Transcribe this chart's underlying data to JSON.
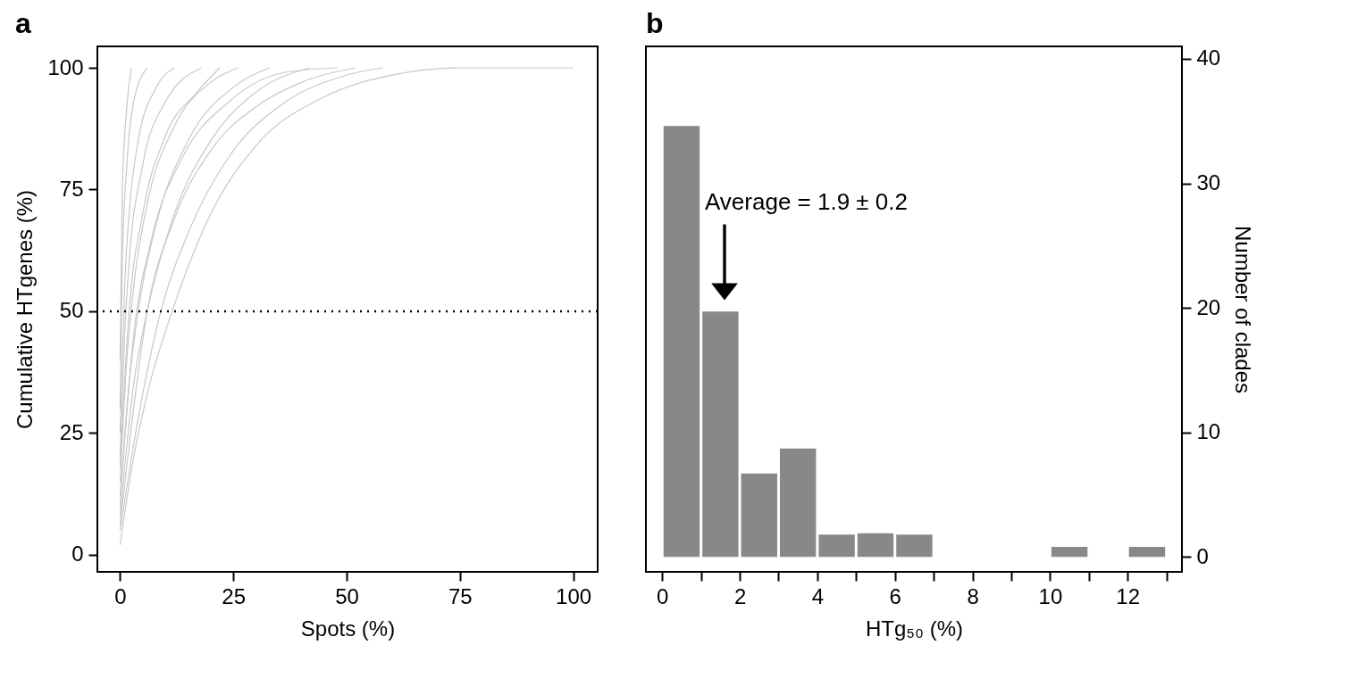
{
  "chart_data": [
    {
      "type": "line",
      "title": "a",
      "xlabel": "Spots (%)",
      "ylabel": "Cumulative HTgenes (%)",
      "xlim": [
        -5,
        105.4
      ],
      "ylim": [
        -3.5,
        104.4
      ],
      "xticks": [
        0,
        25,
        50,
        75,
        100
      ],
      "yticks": [
        0,
        25,
        50,
        75,
        100
      ],
      "grid": false,
      "line_style": "solid",
      "marker": "none",
      "ref_lines": [
        {
          "axis": "y",
          "value": 50,
          "color": "#000000",
          "line_style": "dotted"
        }
      ],
      "series": [
        {
          "color": "#c8c8c8",
          "x": [
            0,
            3,
            6,
            11.5,
            20,
            30,
            45,
            60,
            75,
            100
          ],
          "values": [
            2,
            20,
            33,
            50,
            70,
            84,
            94,
            98.5,
            100,
            100
          ]
        },
        {
          "color": "#c8c8c8",
          "x": [
            0,
            4,
            9,
            15,
            25,
            35,
            50,
            58
          ],
          "values": [
            5,
            28,
            50,
            66,
            83,
            92,
            98.5,
            100
          ]
        },
        {
          "color": "#c8c8c8",
          "x": [
            0,
            3,
            6,
            12,
            20,
            30,
            42
          ],
          "values": [
            8,
            35,
            50,
            70,
            85,
            95,
            100
          ]
        },
        {
          "color": "#c8c8c8",
          "x": [
            0,
            2,
            4,
            8,
            15,
            25,
            33
          ],
          "values": [
            10,
            35,
            50,
            68,
            85,
            96,
            100
          ]
        },
        {
          "color": "#c8c8c8",
          "x": [
            0,
            1.5,
            3,
            6,
            12,
            20,
            26
          ],
          "values": [
            15,
            40,
            55,
            72,
            88,
            97,
            100
          ]
        },
        {
          "color": "#c8c8c8",
          "x": [
            0,
            1,
            2,
            5,
            10,
            18
          ],
          "values": [
            20,
            45,
            60,
            80,
            93,
            100
          ]
        },
        {
          "color": "#c8c8c8",
          "x": [
            0,
            1,
            2,
            4,
            8,
            12
          ],
          "values": [
            25,
            55,
            70,
            85,
            96,
            100
          ]
        },
        {
          "color": "#c8c8c8",
          "x": [
            0,
            0.5,
            1.5,
            3,
            6
          ],
          "values": [
            30,
            60,
            80,
            93,
            100
          ]
        },
        {
          "color": "#c8c8c8",
          "x": [
            0,
            0.5,
            1.5,
            2.5
          ],
          "values": [
            40,
            75,
            92,
            100
          ]
        },
        {
          "color": "#c8c8c8",
          "x": [
            0,
            3,
            7,
            14,
            24,
            36,
            48
          ],
          "values": [
            12,
            45,
            65,
            82,
            93,
            99,
            100
          ]
        },
        {
          "color": "#c8c8c8",
          "x": [
            0,
            6,
            12,
            20,
            30,
            40,
            52
          ],
          "values": [
            6,
            50,
            69,
            83,
            92,
            97,
            100
          ]
        },
        {
          "color": "#c8c8c8",
          "x": [
            0,
            2,
            5,
            10,
            17,
            22
          ],
          "values": [
            18,
            50,
            70,
            86,
            95,
            100
          ]
        }
      ]
    },
    {
      "type": "histogram",
      "title": "b",
      "xlabel": "HTg₅₀ (%)",
      "ylabel": "Number of clades",
      "xlim": [
        -0.42,
        13.4
      ],
      "ylim": [
        -1.2,
        41
      ],
      "grid": false,
      "xticks": [
        0,
        {
          "value": 1,
          "label": null
        },
        2,
        {
          "value": 3,
          "label": null
        },
        4,
        {
          "value": 5,
          "label": null
        },
        6,
        {
          "value": 7,
          "label": null
        },
        8,
        {
          "value": 9,
          "label": null
        },
        10,
        {
          "value": 11,
          "label": null
        },
        12,
        {
          "value": 13,
          "label": null
        }
      ],
      "yticks": [
        0,
        10,
        20,
        30,
        40
      ],
      "bins": [
        0,
        1,
        2,
        3,
        4,
        5,
        6,
        7,
        8,
        9,
        10,
        11,
        12,
        13
      ],
      "series": [
        {
          "color": "#87888a",
          "values": [
            34.6,
            19.7,
            6.7,
            8.7,
            1.8,
            1.9,
            1.8,
            0,
            0,
            0,
            0.8,
            0,
            0.8
          ]
        }
      ],
      "annotations": [
        "Average = 1.9 ± 0.2"
      ]
    }
  ]
}
